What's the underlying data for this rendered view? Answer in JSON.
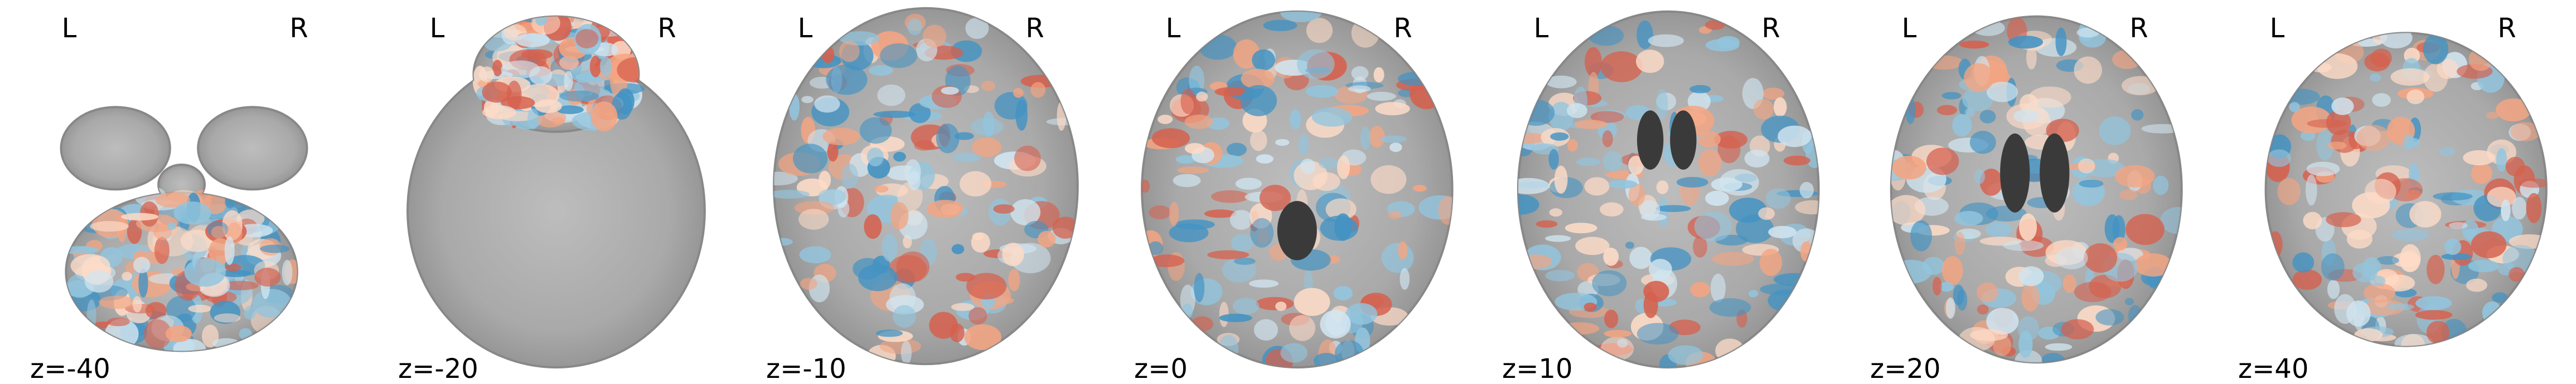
{
  "panels": [
    {
      "left": "L",
      "right": "R",
      "slice": "z=-40"
    },
    {
      "left": "L",
      "right": "R",
      "slice": "z=-20"
    },
    {
      "left": "L",
      "right": "R",
      "slice": "z=-10"
    },
    {
      "left": "L",
      "right": "R",
      "slice": "z=0"
    },
    {
      "left": "L",
      "right": "R",
      "slice": "z=10"
    },
    {
      "left": "L",
      "right": "R",
      "slice": "z=20"
    },
    {
      "left": "L",
      "right": "R",
      "slice": "z=40"
    }
  ]
}
